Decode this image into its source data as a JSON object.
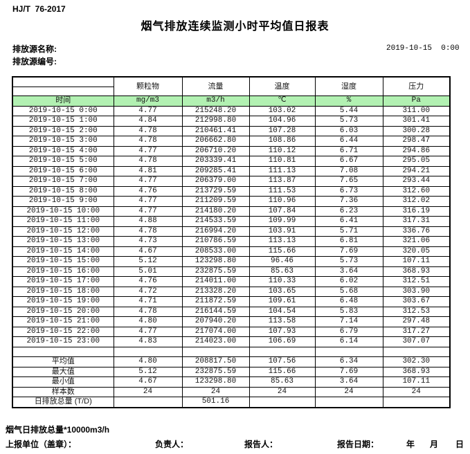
{
  "header": {
    "standard": "HJ/T  76-2017",
    "title": "烟气排放连续监测小时平均值日报表",
    "source_name_label": "排放源名称:",
    "source_code_label": "排放源编号:",
    "datetime": "2019-10-15  0:00"
  },
  "table": {
    "time_header": "时间",
    "columns": [
      {
        "name": "颗粒物",
        "unit": "mg/m3"
      },
      {
        "name": "流量",
        "unit": "m3/h"
      },
      {
        "name": "温度",
        "unit": "℃"
      },
      {
        "name": "湿度",
        "unit": "%"
      },
      {
        "name": "压力",
        "unit": "Pa"
      }
    ],
    "rows": [
      {
        "time": "2019-10-15  0:00",
        "values": [
          "4.77",
          "215248.20",
          "103.02",
          "5.44",
          "311.00"
        ]
      },
      {
        "time": "2019-10-15  1:00",
        "values": [
          "4.84",
          "212998.80",
          "104.96",
          "5.73",
          "301.41"
        ]
      },
      {
        "time": "2019-10-15  2:00",
        "values": [
          "4.78",
          "210461.41",
          "107.28",
          "6.03",
          "300.28"
        ]
      },
      {
        "time": "2019-10-15  3:00",
        "values": [
          "4.78",
          "206662.80",
          "108.86",
          "6.44",
          "298.47"
        ]
      },
      {
        "time": "2019-10-15  4:00",
        "values": [
          "4.77",
          "206710.20",
          "110.12",
          "6.71",
          "294.86"
        ]
      },
      {
        "time": "2019-10-15  5:00",
        "values": [
          "4.78",
          "203339.41",
          "110.81",
          "6.67",
          "295.05"
        ]
      },
      {
        "time": "2019-10-15  6:00",
        "values": [
          "4.81",
          "209285.41",
          "111.13",
          "7.08",
          "294.21"
        ]
      },
      {
        "time": "2019-10-15  7:00",
        "values": [
          "4.77",
          "206379.00",
          "113.87",
          "7.65",
          "293.44"
        ]
      },
      {
        "time": "2019-10-15  8:00",
        "values": [
          "4.76",
          "213729.59",
          "111.53",
          "6.73",
          "312.60"
        ]
      },
      {
        "time": "2019-10-15  9:00",
        "values": [
          "4.77",
          "211209.59",
          "110.96",
          "7.36",
          "312.02"
        ]
      },
      {
        "time": "2019-10-15 10:00",
        "values": [
          "4.77",
          "214180.20",
          "107.84",
          "6.23",
          "316.19"
        ]
      },
      {
        "time": "2019-10-15 11:00",
        "values": [
          "4.88",
          "214533.59",
          "109.99",
          "6.41",
          "317.31"
        ]
      },
      {
        "time": "2019-10-15 12:00",
        "values": [
          "4.78",
          "216994.20",
          "103.91",
          "5.71",
          "336.76"
        ]
      },
      {
        "time": "2019-10-15 13:00",
        "values": [
          "4.73",
          "210786.59",
          "113.13",
          "6.81",
          "321.06"
        ]
      },
      {
        "time": "2019-10-15 14:00",
        "values": [
          "4.67",
          "208533.00",
          "115.66",
          "7.69",
          "320.05"
        ]
      },
      {
        "time": "2019-10-15 15:00",
        "values": [
          "5.12",
          "123298.80",
          "96.46",
          "5.73",
          "107.11"
        ]
      },
      {
        "time": "2019-10-15 16:00",
        "values": [
          "5.01",
          "232875.59",
          "85.63",
          "3.64",
          "368.93"
        ]
      },
      {
        "time": "2019-10-15 17:00",
        "values": [
          "4.76",
          "214011.00",
          "110.33",
          "6.02",
          "312.51"
        ]
      },
      {
        "time": "2019-10-15 18:00",
        "values": [
          "4.72",
          "213328.20",
          "103.65",
          "5.68",
          "303.90"
        ]
      },
      {
        "time": "2019-10-15 19:00",
        "values": [
          "4.71",
          "211872.59",
          "109.61",
          "6.48",
          "303.67"
        ]
      },
      {
        "time": "2019-10-15 20:00",
        "values": [
          "4.78",
          "216144.59",
          "104.54",
          "5.83",
          "312.53"
        ]
      },
      {
        "time": "2019-10-15 21:00",
        "values": [
          "4.80",
          "207940.20",
          "113.58",
          "7.14",
          "297.48"
        ]
      },
      {
        "time": "2019-10-15 22:00",
        "values": [
          "4.77",
          "217074.00",
          "107.93",
          "6.79",
          "317.27"
        ]
      },
      {
        "time": "2019-10-15 23:00",
        "values": [
          "4.83",
          "214023.00",
          "106.69",
          "6.14",
          "307.07"
        ]
      }
    ],
    "summary": [
      {
        "label": "平均值",
        "values": [
          "4.80",
          "208817.50",
          "107.56",
          "6.34",
          "302.30"
        ]
      },
      {
        "label": "最大值",
        "values": [
          "5.12",
          "232875.59",
          "115.66",
          "7.69",
          "368.93"
        ]
      },
      {
        "label": "最小值",
        "values": [
          "4.67",
          "123298.80",
          "85.63",
          "3.64",
          "107.11"
        ]
      },
      {
        "label": "样本数",
        "values": [
          "24",
          "24",
          "24",
          "24",
          "24"
        ]
      },
      {
        "label": "日排放总量 (T/D)",
        "values": [
          "",
          "501.16",
          "",
          "",
          ""
        ]
      }
    ]
  },
  "footer": {
    "note": "烟气日排放总量*10000m3/h",
    "unit_label": "上报单位（盖章）：",
    "responsible_label": "负责人：",
    "reporter_label": "报告人：",
    "report_date_label": "报告日期：",
    "year_label": "年",
    "month_label": "月",
    "day_label": "日"
  },
  "colors": {
    "unit_row_green": "#b2f1b2",
    "border": "#000000"
  }
}
